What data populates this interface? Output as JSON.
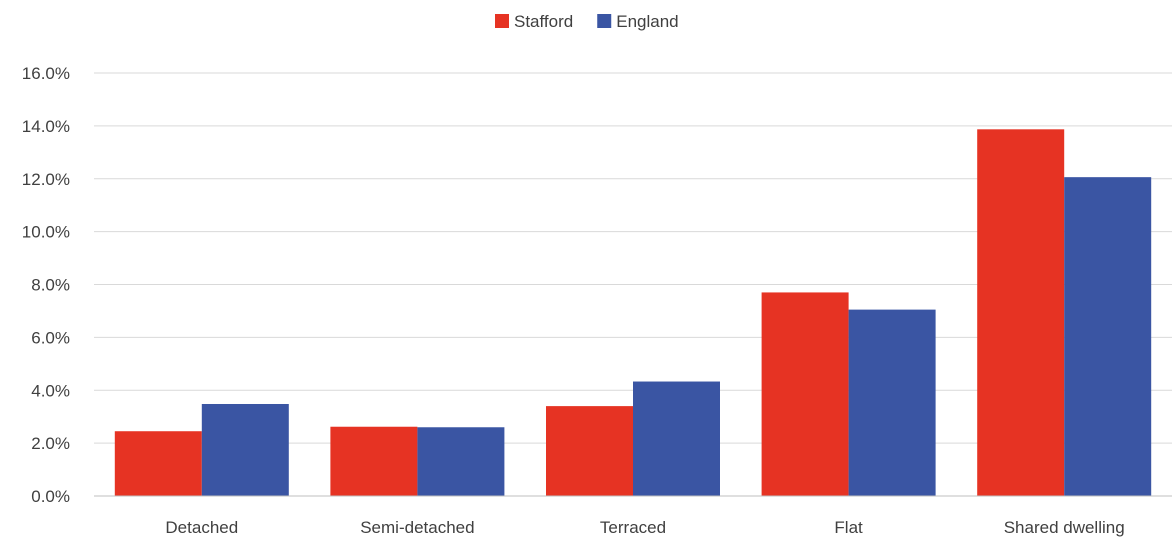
{
  "chart_data": {
    "type": "bar",
    "title": "",
    "xlabel": "",
    "ylabel": "",
    "categories": [
      "Detached",
      "Semi-detached",
      "Terraced",
      "Flat",
      "Shared dwelling"
    ],
    "series": [
      {
        "name": "Stafford",
        "color": "#e63323",
        "values": [
          2.45,
          2.62,
          3.4,
          7.7,
          13.87
        ]
      },
      {
        "name": "England",
        "color": "#3a55a3",
        "values": [
          3.48,
          2.6,
          4.33,
          7.05,
          12.06
        ]
      }
    ],
    "ylim": [
      0,
      16
    ],
    "yticks": [
      "0.0%",
      "2.0%",
      "4.0%",
      "6.0%",
      "8.0%",
      "10.0%",
      "12.0%",
      "14.0%",
      "16.0%"
    ],
    "grid": true,
    "legend": "top-center",
    "gridline_color": "#d9d9d9",
    "axis_color": "#bfbfbf",
    "text_color": "#404040"
  }
}
